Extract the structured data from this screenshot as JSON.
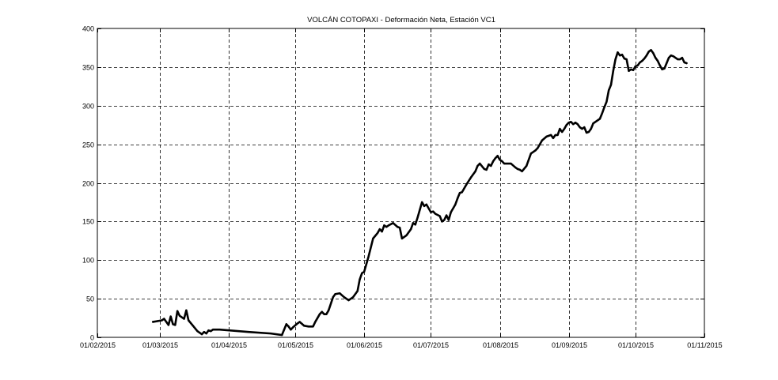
{
  "chart_data": {
    "type": "line",
    "title": "VOLCÁN COTOPAXI - Deformación Neta, Estación VC1",
    "xlabel": "",
    "ylabel": "",
    "grid": true,
    "legend": "none",
    "xlim": [
      "2015-02-01",
      "2015-11-01"
    ],
    "ylim": [
      0,
      400
    ],
    "x_ticks": [
      "2015-02-01",
      "2015-03-01",
      "2015-04-01",
      "2015-05-01",
      "2015-06-01",
      "2015-07-01",
      "2015-08-01",
      "2015-09-01",
      "2015-10-01",
      "2015-11-01"
    ],
    "x_tick_labels": [
      "01/02/2015",
      "01/03/2015",
      "01/04/2015",
      "01/05/2015",
      "01/06/2015",
      "01/07/2015",
      "01/08/2015",
      "01/09/2015",
      "01/10/2015",
      "01/11/2015"
    ],
    "y_ticks": [
      0,
      50,
      100,
      150,
      200,
      250,
      300,
      350,
      400
    ],
    "y_tick_labels": [
      "0",
      "50",
      "100",
      "150",
      "200",
      "250",
      "300",
      "350",
      "400"
    ],
    "series": [
      {
        "color": "#000000",
        "points": [
          [
            "2015-02-26",
            20
          ],
          [
            "2015-02-28",
            21
          ],
          [
            "2015-03-02",
            22
          ],
          [
            "2015-03-03",
            24
          ],
          [
            "2015-03-05",
            16
          ],
          [
            "2015-03-06",
            27
          ],
          [
            "2015-03-07",
            17
          ],
          [
            "2015-03-08",
            16
          ],
          [
            "2015-03-09",
            34
          ],
          [
            "2015-03-10",
            28
          ],
          [
            "2015-03-12",
            24
          ],
          [
            "2015-03-13",
            35
          ],
          [
            "2015-03-14",
            22
          ],
          [
            "2015-03-16",
            15
          ],
          [
            "2015-03-18",
            8
          ],
          [
            "2015-03-20",
            4
          ],
          [
            "2015-03-21",
            7
          ],
          [
            "2015-03-22",
            5
          ],
          [
            "2015-03-23",
            9
          ],
          [
            "2015-03-24",
            8
          ],
          [
            "2015-03-25",
            10
          ],
          [
            "2015-03-28",
            10
          ],
          [
            "2015-04-10",
            7
          ],
          [
            "2015-04-20",
            5
          ],
          [
            "2015-04-25",
            3
          ],
          [
            "2015-04-26",
            10
          ],
          [
            "2015-04-27",
            17
          ],
          [
            "2015-04-28",
            14
          ],
          [
            "2015-04-29",
            10
          ],
          [
            "2015-04-30",
            13
          ],
          [
            "2015-05-02",
            18
          ],
          [
            "2015-05-03",
            20
          ],
          [
            "2015-05-05",
            15
          ],
          [
            "2015-05-07",
            14
          ],
          [
            "2015-05-09",
            14
          ],
          [
            "2015-05-10",
            20
          ],
          [
            "2015-05-12",
            30
          ],
          [
            "2015-05-13",
            33
          ],
          [
            "2015-05-14",
            30
          ],
          [
            "2015-05-15",
            30
          ],
          [
            "2015-05-16",
            35
          ],
          [
            "2015-05-18",
            52
          ],
          [
            "2015-05-19",
            56
          ],
          [
            "2015-05-21",
            57
          ],
          [
            "2015-05-23",
            52
          ],
          [
            "2015-05-25",
            48
          ],
          [
            "2015-05-27",
            52
          ],
          [
            "2015-05-29",
            60
          ],
          [
            "2015-05-30",
            75
          ],
          [
            "2015-05-31",
            83
          ],
          [
            "2015-06-01",
            85
          ],
          [
            "2015-06-03",
            105
          ],
          [
            "2015-06-05",
            128
          ],
          [
            "2015-06-07",
            135
          ],
          [
            "2015-06-08",
            140
          ],
          [
            "2015-06-09",
            137
          ],
          [
            "2015-06-10",
            145
          ],
          [
            "2015-06-11",
            143
          ],
          [
            "2015-06-12",
            145
          ],
          [
            "2015-06-14",
            148
          ],
          [
            "2015-06-16",
            143
          ],
          [
            "2015-06-17",
            142
          ],
          [
            "2015-06-18",
            128
          ],
          [
            "2015-06-19",
            130
          ],
          [
            "2015-06-20",
            132
          ],
          [
            "2015-06-22",
            140
          ],
          [
            "2015-06-23",
            148
          ],
          [
            "2015-06-24",
            146
          ],
          [
            "2015-06-25",
            155
          ],
          [
            "2015-06-26",
            165
          ],
          [
            "2015-06-27",
            175
          ],
          [
            "2015-06-28",
            170
          ],
          [
            "2015-06-29",
            172
          ],
          [
            "2015-07-01",
            162
          ],
          [
            "2015-07-02",
            163
          ],
          [
            "2015-07-03",
            160
          ],
          [
            "2015-07-05",
            157
          ],
          [
            "2015-07-06",
            150
          ],
          [
            "2015-07-07",
            152
          ],
          [
            "2015-07-08",
            158
          ],
          [
            "2015-07-09",
            152
          ],
          [
            "2015-07-10",
            162
          ],
          [
            "2015-07-12",
            172
          ],
          [
            "2015-07-13",
            180
          ],
          [
            "2015-07-14",
            187
          ],
          [
            "2015-07-15",
            188
          ],
          [
            "2015-07-17",
            198
          ],
          [
            "2015-07-19",
            207
          ],
          [
            "2015-07-21",
            215
          ],
          [
            "2015-07-22",
            222
          ],
          [
            "2015-07-23",
            225
          ],
          [
            "2015-07-25",
            218
          ],
          [
            "2015-07-26",
            217
          ],
          [
            "2015-07-27",
            224
          ],
          [
            "2015-07-28",
            222
          ],
          [
            "2015-07-29",
            228
          ],
          [
            "2015-07-30",
            232
          ],
          [
            "2015-07-31",
            235
          ],
          [
            "2015-08-01",
            230
          ],
          [
            "2015-08-02",
            228
          ],
          [
            "2015-08-03",
            225
          ],
          [
            "2015-08-06",
            225
          ],
          [
            "2015-08-08",
            220
          ],
          [
            "2015-08-09",
            218
          ],
          [
            "2015-08-10",
            217
          ],
          [
            "2015-08-11",
            215
          ],
          [
            "2015-08-13",
            222
          ],
          [
            "2015-08-15",
            238
          ],
          [
            "2015-08-17",
            242
          ],
          [
            "2015-08-18",
            245
          ],
          [
            "2015-08-20",
            255
          ],
          [
            "2015-08-22",
            260
          ],
          [
            "2015-08-24",
            262
          ],
          [
            "2015-08-25",
            258
          ],
          [
            "2015-08-26",
            262
          ],
          [
            "2015-08-27",
            262
          ],
          [
            "2015-08-28",
            270
          ],
          [
            "2015-08-29",
            266
          ],
          [
            "2015-08-30",
            270
          ],
          [
            "2015-08-31",
            275
          ],
          [
            "2015-09-01",
            278
          ],
          [
            "2015-09-02",
            279
          ],
          [
            "2015-09-03",
            276
          ],
          [
            "2015-09-04",
            278
          ],
          [
            "2015-09-05",
            276
          ],
          [
            "2015-09-06",
            272
          ],
          [
            "2015-09-07",
            270
          ],
          [
            "2015-09-08",
            272
          ],
          [
            "2015-09-09",
            265
          ],
          [
            "2015-09-10",
            266
          ],
          [
            "2015-09-11",
            270
          ],
          [
            "2015-09-12",
            277
          ],
          [
            "2015-09-14",
            281
          ],
          [
            "2015-09-15",
            283
          ],
          [
            "2015-09-16",
            290
          ],
          [
            "2015-09-17",
            298
          ],
          [
            "2015-09-18",
            305
          ],
          [
            "2015-09-19",
            320
          ],
          [
            "2015-09-20",
            327
          ],
          [
            "2015-09-21",
            345
          ],
          [
            "2015-09-22",
            360
          ],
          [
            "2015-09-23",
            369
          ],
          [
            "2015-09-24",
            365
          ],
          [
            "2015-09-25",
            366
          ],
          [
            "2015-09-26",
            361
          ],
          [
            "2015-09-27",
            360
          ],
          [
            "2015-09-28",
            345
          ],
          [
            "2015-09-29",
            347
          ],
          [
            "2015-09-30",
            346
          ],
          [
            "2015-10-01",
            351
          ],
          [
            "2015-10-02",
            352
          ],
          [
            "2015-10-03",
            356
          ],
          [
            "2015-10-04",
            358
          ],
          [
            "2015-10-05",
            361
          ],
          [
            "2015-10-06",
            365
          ],
          [
            "2015-10-07",
            370
          ],
          [
            "2015-10-08",
            372
          ],
          [
            "2015-10-09",
            368
          ],
          [
            "2015-10-10",
            362
          ],
          [
            "2015-10-11",
            358
          ],
          [
            "2015-10-12",
            352
          ],
          [
            "2015-10-13",
            347
          ],
          [
            "2015-10-14",
            348
          ],
          [
            "2015-10-15",
            355
          ],
          [
            "2015-10-16",
            362
          ],
          [
            "2015-10-17",
            365
          ],
          [
            "2015-10-18",
            364
          ],
          [
            "2015-10-20",
            360
          ],
          [
            "2015-10-21",
            360
          ],
          [
            "2015-10-22",
            362
          ],
          [
            "2015-10-23",
            356
          ],
          [
            "2015-10-24",
            355
          ]
        ]
      }
    ]
  }
}
